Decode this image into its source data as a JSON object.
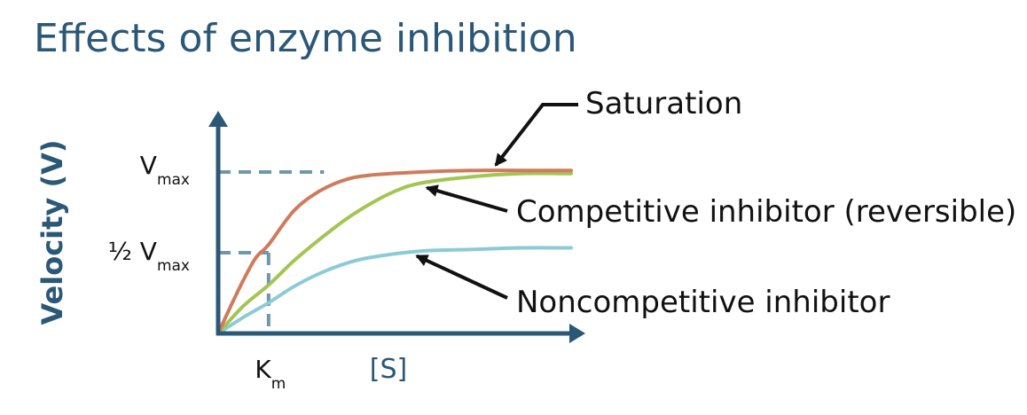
{
  "title": "Effects of enzyme inhibition",
  "colors": {
    "axis": "#2b5876",
    "guide": "#6f97ab",
    "saturation": "#cf7b5c",
    "competitive": "#a3c552",
    "noncompetitive": "#8ccbd6",
    "arrow": "#111111"
  },
  "chart_data": {
    "type": "line",
    "ylabel": "Velocity (V)",
    "xlabel": "[S]",
    "x_tick": {
      "main": "K",
      "sub": "m",
      "value": 1
    },
    "y_ticks": [
      {
        "main": "V",
        "sub": "max",
        "value": 1.0
      },
      {
        "prefix": "½ ",
        "main": "V",
        "sub": "max",
        "value": 0.5
      }
    ],
    "xlim": [
      0,
      7.3
    ],
    "ylim": [
      0,
      1.32
    ],
    "grid": false,
    "series": [
      {
        "name": "Saturation",
        "color_key": "saturation",
        "x": [
          0,
          0.25,
          0.5,
          0.75,
          1,
          1.5,
          2,
          2.5,
          3,
          4,
          5,
          6,
          7
        ],
        "y": [
          0,
          0.17,
          0.33,
          0.47,
          0.55,
          0.76,
          0.88,
          0.95,
          0.98,
          1.0,
          1.01,
          1.01,
          1.01
        ]
      },
      {
        "name": "Competitive inhibitor (reversible)",
        "color_key": "competitive",
        "x": [
          0,
          0.5,
          1,
          1.5,
          2,
          2.5,
          3,
          3.5,
          4,
          5,
          6,
          7
        ],
        "y": [
          0,
          0.17,
          0.3,
          0.45,
          0.58,
          0.7,
          0.8,
          0.88,
          0.93,
          0.97,
          0.99,
          0.99
        ]
      },
      {
        "name": "Noncompetitive inhibitor",
        "color_key": "noncompetitive",
        "x": [
          0,
          0.5,
          1,
          1.5,
          2,
          2.5,
          3,
          4,
          5,
          6,
          7
        ],
        "y": [
          0,
          0.1,
          0.19,
          0.29,
          0.37,
          0.43,
          0.47,
          0.51,
          0.52,
          0.53,
          0.53
        ]
      }
    ],
    "annotations": [
      {
        "text": "Saturation",
        "series": 0,
        "at_x": 5.4
      },
      {
        "text": "Competitive inhibitor (reversible)",
        "series": 1,
        "at_x": 4.0
      },
      {
        "text": "Noncompetitive inhibitor",
        "series": 2,
        "at_x": 3.8
      }
    ]
  }
}
